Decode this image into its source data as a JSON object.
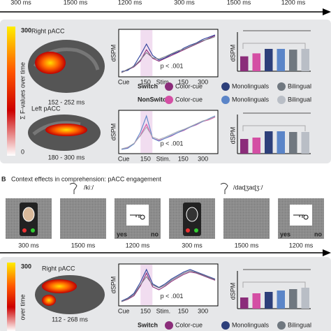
{
  "top_timeline": [
    "300 ms",
    "1500 ms",
    "1200 ms",
    "300 ms",
    "1500 ms",
    "1200 ms"
  ],
  "panel_a": {
    "colorbar": {
      "max": "300",
      "min": "0",
      "label": "Σ F-values over time"
    },
    "regions": [
      {
        "name": "Right pACC",
        "window": "152 - 252 ms"
      },
      {
        "name": "Left pACC",
        "window": "180 - 300 ms"
      }
    ],
    "plots": [
      {
        "ylabel": "dSPM",
        "xticks": [
          "Cue",
          "150",
          "Stim.",
          "150",
          "300"
        ],
        "p": "p < .001",
        "traces": [
          {
            "color": "#8b2d7a",
            "values": [
              2,
              2.5,
              3,
              4,
              6,
              4.5,
              4,
              4.5,
              5,
              5.5,
              6,
              6.5,
              7,
              7.5,
              8,
              8.5
            ]
          },
          {
            "color": "#2d3f9a",
            "values": [
              2.2,
              2.4,
              3.2,
              5,
              7,
              5,
              4.2,
              4.6,
              5.2,
              5.6,
              6.3,
              6.8,
              7.2,
              7.8,
              8.2,
              8.6
            ]
          },
          {
            "color": "#7a8088",
            "values": [
              2,
              2.6,
              3.1,
              4.2,
              5.5,
              4.6,
              4.4,
              4.8,
              5.3,
              5.8,
              6.1,
              6.6,
              7.1,
              7.6,
              7.9,
              8.3
            ]
          }
        ],
        "bars": [
          20,
          24,
          30,
          30,
          29,
          30
        ]
      },
      {
        "ylabel": "dSPM",
        "xticks": [
          "Cue",
          "150",
          "Stim.",
          "150",
          "300"
        ],
        "p": "p < .001",
        "traces": [
          {
            "color": "#d44fa4",
            "values": [
              2,
              2.3,
              3,
              4.5,
              6.5,
              4,
              3.6,
              4,
              4.4,
              5,
              5.4,
              6,
              6.4,
              7,
              7.3,
              7.8
            ]
          },
          {
            "color": "#5b85c8",
            "values": [
              2,
              2.2,
              3,
              5,
              8,
              4,
              3.5,
              4,
              4.5,
              5,
              5.5,
              6,
              6.5,
              7,
              7.5,
              8
            ]
          },
          {
            "color": "#a8adb5",
            "values": [
              2.1,
              2.4,
              3.1,
              4.4,
              6,
              4.2,
              3.8,
              4.2,
              4.7,
              5.2,
              5.6,
              6.1,
              6.6,
              7.1,
              7.4,
              7.9
            ]
          }
        ],
        "bars": [
          21,
          23,
          32,
          32,
          31,
          31
        ]
      }
    ],
    "legend": [
      {
        "label": "Switch",
        "items": [
          {
            "label": "Color-cue",
            "color": "#8b2d7a"
          },
          {
            "label": "Monolinguals",
            "color": "#2d3f7a"
          },
          {
            "label": "Bilingual",
            "color": "#707880"
          }
        ]
      },
      {
        "label": "NonSwitch",
        "items": [
          {
            "label": "Color-cue",
            "color": "#d44fa4"
          },
          {
            "label": "Monolinguals",
            "color": "#5b85c8"
          },
          {
            "label": "Bilingual",
            "color": "#b9bec6"
          }
        ]
      }
    ]
  },
  "panel_b": {
    "letter": "B",
    "title": "Context effects in comprehension: pACC engagement",
    "sounds": [
      "/kiː/",
      "/daɖʒaɖʒː/"
    ],
    "responses": [
      "yes",
      "no"
    ],
    "timeline": [
      "300 ms",
      "1500 ms",
      "1200 ms",
      "300 ms",
      "1500 ms",
      "1200 ms"
    ]
  },
  "panel_c": {
    "colorbar": {
      "max": "300",
      "label": "over time"
    },
    "region": {
      "name": "Right pACC",
      "window": "112 - 268 ms"
    },
    "plot": {
      "ylabel": "dSPM",
      "xticks": [
        "Cue",
        "150",
        "Stim.",
        "150",
        "300"
      ],
      "p": "p < .001",
      "traces": [
        {
          "color": "#8b2d7a",
          "values": [
            2,
            2.4,
            3,
            4.6,
            6.8,
            4.5,
            4,
            4.6,
            5.4,
            6,
            6.6,
            7,
            6.8,
            6.4,
            6,
            5.6
          ]
        },
        {
          "color": "#2d3f9a",
          "values": [
            2.1,
            2.6,
            3.4,
            5.2,
            7.4,
            5,
            4.4,
            5,
            5.8,
            6.4,
            7,
            7.4,
            7,
            6.6,
            6.2,
            5.8
          ]
        },
        {
          "color": "#7a8088",
          "values": [
            2,
            2.5,
            3.2,
            4.8,
            6.2,
            4.8,
            4.3,
            4.8,
            5.6,
            6.2,
            6.8,
            7.2,
            6.9,
            6.5,
            6.1,
            5.7
          ]
        }
      ],
      "bars": [
        16,
        22,
        24,
        26,
        28,
        30
      ]
    },
    "legend": {
      "label": "Switch",
      "items": [
        {
          "label": "Color-cue",
          "color": "#8b2d7a"
        },
        {
          "label": "Monolinguals",
          "color": "#2d3f7a"
        },
        {
          "label": "Bilingual",
          "color": "#707880"
        }
      ]
    }
  }
}
